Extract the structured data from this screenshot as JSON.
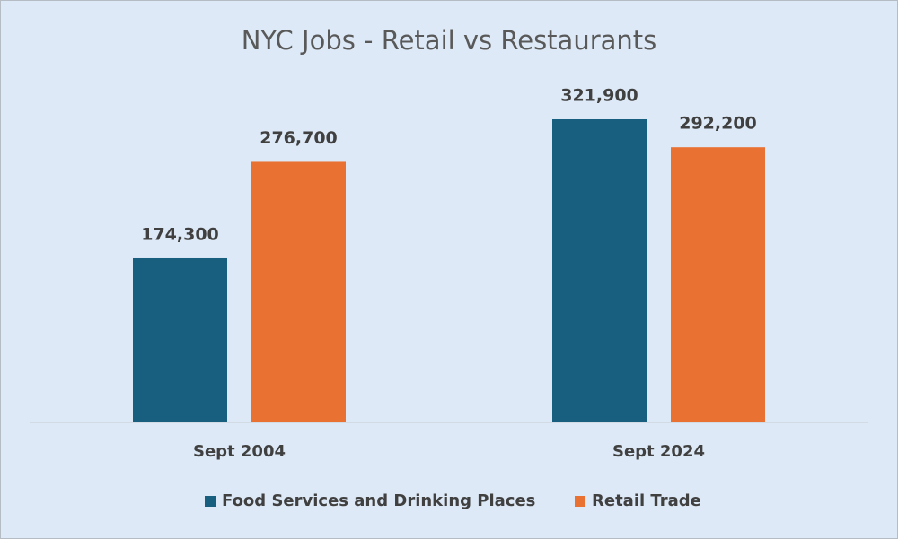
{
  "chart_data": {
    "type": "bar",
    "title": "NYC Jobs - Retail vs Restaurants",
    "categories": [
      "Sept 2004",
      "Sept 2024"
    ],
    "series": [
      {
        "name": "Food Services and Drinking Places",
        "color": "#175e7f",
        "values": [
          174300,
          321900
        ],
        "value_labels": [
          "174,300",
          "321,900"
        ]
      },
      {
        "name": "Retail Trade",
        "color": "#e97132",
        "values": [
          276700,
          292200
        ],
        "value_labels": [
          "276,700",
          "292,200"
        ]
      }
    ],
    "ylim": [
      0,
      350000
    ],
    "legend": "bottom"
  }
}
